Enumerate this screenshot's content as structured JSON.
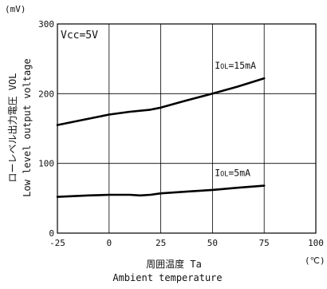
{
  "chart_data": {
    "type": "line",
    "title": "",
    "y_unit": "(mV)",
    "x_unit": "(℃)",
    "xlabel_primary": "周囲温度 Ta",
    "xlabel_secondary": "Ambient temperature",
    "ylabel_primary": "ローレベル出力電圧 VOL",
    "ylabel_secondary": "Low level output voltage",
    "condition": "Vcc=5V",
    "xlim": [
      -25,
      100
    ],
    "ylim": [
      0,
      300
    ],
    "x_ticks": [
      "-25",
      "0",
      "25",
      "50",
      "75",
      "100"
    ],
    "y_ticks": [
      "0",
      "100",
      "200",
      "300"
    ],
    "grid": true,
    "series": [
      {
        "name": "IOL=15mA",
        "label_prefix": "I",
        "label_sub": "OL",
        "label_suffix": "=15mA",
        "x": [
          -25,
          -15,
          0,
          10,
          20,
          25,
          37,
          50,
          62,
          75
        ],
        "y": [
          155,
          161,
          170,
          174,
          177,
          180,
          190,
          200,
          210,
          222
        ]
      },
      {
        "name": "IOL=5mA",
        "label_prefix": "I",
        "label_sub": "OL",
        "label_suffix": "=5mA",
        "x": [
          -25,
          -10,
          0,
          10,
          15,
          20,
          25,
          40,
          50,
          62,
          75
        ],
        "y": [
          52,
          54,
          55,
          55,
          54,
          55,
          57,
          60,
          62,
          65,
          68
        ]
      }
    ]
  }
}
